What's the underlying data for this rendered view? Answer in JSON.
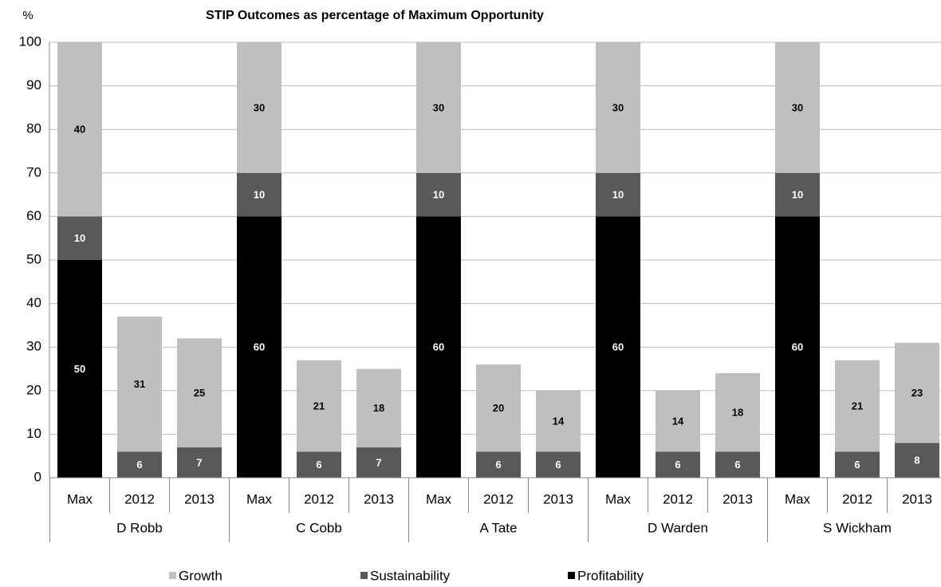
{
  "chart_data": {
    "type": "stacked_bar",
    "title": "STIP Outcomes as percentage of Maximum Opportunity",
    "y_label": "%",
    "categories": [
      "Max",
      "2012",
      "2013",
      "Max",
      "2012",
      "2013",
      "Max",
      "2012",
      "2013",
      "Max",
      "2012",
      "2013",
      "Max",
      "2012",
      "2013"
    ],
    "groups": [
      "D Robb",
      "C Cobb",
      "A Tate",
      "D Warden",
      "S Wickham"
    ],
    "series": [
      {
        "name": "Profitability",
        "color": "#000000",
        "label_color": "#ffffff",
        "values": [
          50,
          null,
          null,
          60,
          null,
          null,
          60,
          null,
          null,
          60,
          null,
          null,
          60,
          null,
          null
        ]
      },
      {
        "name": "Sustainability",
        "color": "#595959",
        "label_color": "#ffffff",
        "values": [
          10,
          6,
          7,
          10,
          6,
          7,
          10,
          6,
          6,
          10,
          6,
          6,
          10,
          6,
          8
        ]
      },
      {
        "name": "Growth",
        "color": "#bfbfbf",
        "label_color": "#000000",
        "values": [
          40,
          31,
          25,
          30,
          21,
          18,
          30,
          20,
          14,
          30,
          14,
          18,
          30,
          21,
          23
        ]
      }
    ],
    "legend_order": [
      "Growth",
      "Sustainability",
      "Profitability"
    ],
    "ylim": [
      0,
      100
    ],
    "yticks": [
      0,
      10,
      20,
      30,
      40,
      50,
      60,
      70,
      80,
      90,
      100
    ],
    "grid": true
  }
}
